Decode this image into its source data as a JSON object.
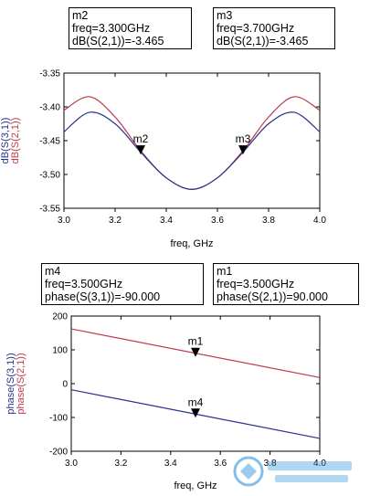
{
  "colors": {
    "red": "#c0394a",
    "blue": "#2a2f8c",
    "axis": "#000000",
    "watermark": "#1e8bd6"
  },
  "charts": [
    {
      "type": "line",
      "xlabel": "freq, GHz",
      "ylabel_series": [
        "dB(S(3,1))",
        "dB(S(2,1))"
      ],
      "xlim": [
        3.0,
        4.0
      ],
      "ylim": [
        -3.55,
        -3.35
      ],
      "xticks": [
        "3.0",
        "3.2",
        "3.4",
        "3.6",
        "3.8",
        "4.0"
      ],
      "yticks": [
        "-3.35",
        "-3.40",
        "-3.45",
        "-3.50",
        "-3.55"
      ],
      "markers": [
        {
          "id": "m2",
          "lines": [
            "m2",
            "freq=3.300GHz",
            "dB(S(2,1))=-3.465"
          ],
          "x": 3.3,
          "y": -3.465
        },
        {
          "id": "m3",
          "lines": [
            "m3",
            "freq=3.700GHz",
            "dB(S(2,1))=-3.465"
          ],
          "x": 3.7,
          "y": -3.465
        }
      ]
    },
    {
      "type": "line",
      "xlabel": "freq, GHz",
      "ylabel_series": [
        "phase(S(3,1))",
        "phase(S(2,1))"
      ],
      "xlim": [
        3.0,
        4.0
      ],
      "ylim": [
        -200,
        200
      ],
      "xticks": [
        "3.0",
        "3.2",
        "3.4",
        "3.6",
        "3.8",
        "4.0"
      ],
      "yticks": [
        "200",
        "100",
        "0",
        "-100",
        "-200"
      ],
      "markers": [
        {
          "id": "m4",
          "lines": [
            "m4",
            "freq=3.500GHz",
            "phase(S(3,1))=-90.000"
          ],
          "x": 3.5,
          "y": -90
        },
        {
          "id": "m1",
          "lines": [
            "m1",
            "freq=3.500GHz",
            "phase(S(2,1))=90.000"
          ],
          "x": 3.5,
          "y": 90
        }
      ]
    }
  ],
  "chart_data": [
    {
      "type": "line",
      "xlabel": "freq, GHz",
      "ylabel": "dB(S(3,1)) / dB(S(2,1))",
      "xlim": [
        3.0,
        4.0
      ],
      "ylim": [
        -3.55,
        -3.35
      ],
      "grid": false,
      "series": [
        {
          "name": "dB(S(2,1))",
          "color": "#c0394a",
          "x": [
            3.0,
            3.1,
            3.2,
            3.3,
            3.4,
            3.5,
            3.6,
            3.7,
            3.8,
            3.9,
            4.0
          ],
          "y": [
            -3.405,
            -3.385,
            -3.415,
            -3.465,
            -3.505,
            -3.522,
            -3.505,
            -3.465,
            -3.415,
            -3.385,
            -3.405
          ]
        },
        {
          "name": "dB(S(3,1))",
          "color": "#2a2f8c",
          "x": [
            3.0,
            3.1,
            3.2,
            3.3,
            3.4,
            3.5,
            3.6,
            3.7,
            3.8,
            3.9,
            4.0
          ],
          "y": [
            -3.437,
            -3.408,
            -3.425,
            -3.467,
            -3.505,
            -3.522,
            -3.505,
            -3.467,
            -3.425,
            -3.408,
            -3.437
          ]
        }
      ]
    },
    {
      "type": "line",
      "xlabel": "freq, GHz",
      "ylabel": "phase(S(3,1)) / phase(S(2,1))",
      "xlim": [
        3.0,
        4.0
      ],
      "ylim": [
        -200,
        200
      ],
      "grid": false,
      "series": [
        {
          "name": "phase(S(2,1))",
          "color": "#c0394a",
          "x": [
            3.0,
            4.0
          ],
          "y": [
            162,
            18
          ]
        },
        {
          "name": "phase(S(3,1))",
          "color": "#2a2f8c",
          "x": [
            3.0,
            4.0
          ],
          "y": [
            -18,
            -162
          ]
        }
      ]
    }
  ]
}
